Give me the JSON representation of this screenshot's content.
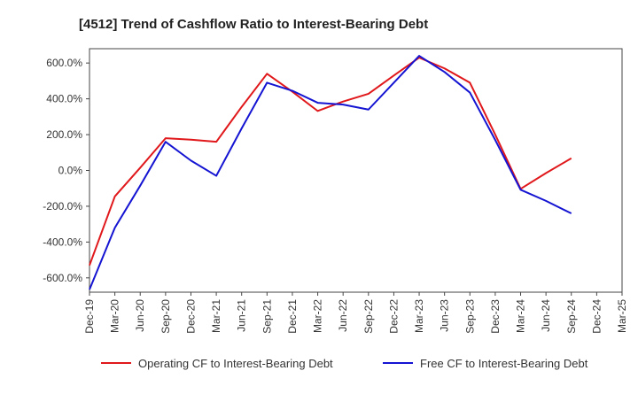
{
  "chart_data": {
    "type": "line",
    "title": "[4512]  Trend of Cashflow Ratio to Interest-Bearing Debt",
    "xlabel": "",
    "ylabel": "",
    "categories": [
      "Dec-19",
      "Mar-20",
      "Jun-20",
      "Sep-20",
      "Dec-20",
      "Mar-21",
      "Jun-21",
      "Sep-21",
      "Dec-21",
      "Mar-22",
      "Jun-22",
      "Sep-22",
      "Dec-22",
      "Mar-23",
      "Jun-23",
      "Sep-23",
      "Dec-23",
      "Mar-24",
      "Jun-24",
      "Sep-24",
      "Dec-24",
      "Mar-25"
    ],
    "ylim": [
      -680,
      680
    ],
    "yticks": [
      -600,
      -400,
      -200,
      0,
      200,
      400,
      600
    ],
    "ytick_labels": [
      "-600.0%",
      "-400.0%",
      "-200.0%",
      "0.0%",
      "200.0%",
      "400.0%",
      "600.0%"
    ],
    "grid": true,
    "legend_position": "bottom",
    "series": [
      {
        "name": "Operating CF to Interest-Bearing Debt",
        "color": "#e0181b",
        "values": [
          -530,
          -145,
          15,
          180,
          172,
          160,
          355,
          540,
          440,
          332,
          385,
          428,
          530,
          630,
          570,
          490,
          200,
          -103,
          -15,
          68,
          null,
          null
        ]
      },
      {
        "name": "Free CF to Interest-Bearing Debt",
        "color": "#1414d2",
        "values": [
          -665,
          -320,
          -85,
          160,
          55,
          -30,
          235,
          490,
          445,
          378,
          368,
          340,
          490,
          640,
          550,
          435,
          170,
          -108,
          -170,
          -240,
          null,
          null
        ]
      }
    ]
  }
}
